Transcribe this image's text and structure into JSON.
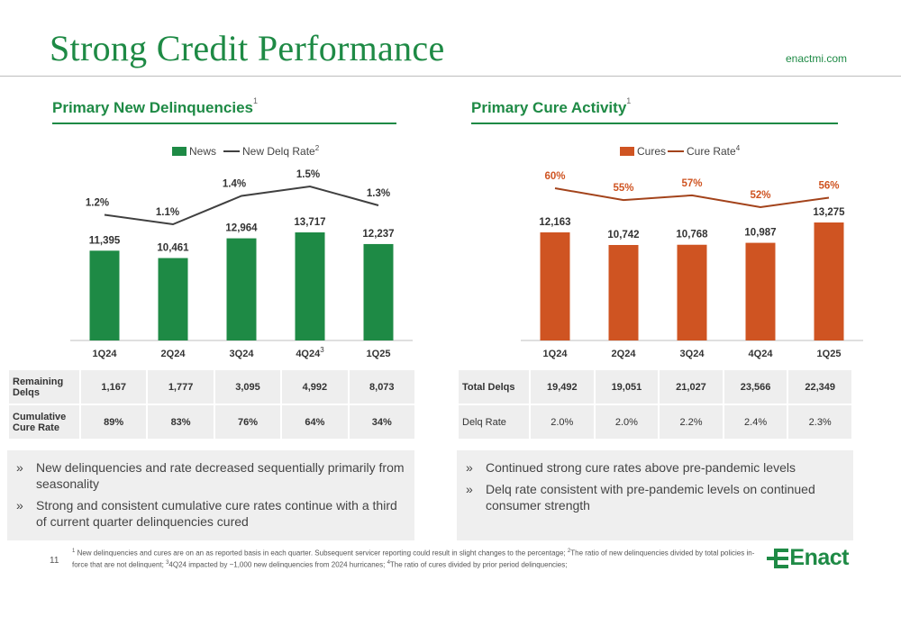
{
  "header": {
    "title": "Strong Credit Performance",
    "site": "enactmi.com"
  },
  "left": {
    "title": "Primary New Delinquencies",
    "title_sup": "1",
    "legend": {
      "bar": "News",
      "line": "New Delq Rate",
      "line_sup": "2"
    },
    "table": {
      "rows": [
        {
          "label": "Remaining Delqs",
          "values": [
            "1,167",
            "1,777",
            "3,095",
            "4,992",
            "8,073"
          ]
        },
        {
          "label": "Cumulative Cure Rate",
          "values": [
            "89%",
            "83%",
            "76%",
            "64%",
            "34%"
          ]
        }
      ]
    },
    "bullets": [
      "New delinquencies and rate decreased sequentially primarily from seasonality",
      "Strong and consistent cumulative cure rates continue with a third of current quarter delinquencies cured"
    ]
  },
  "right": {
    "title": "Primary Cure Activity",
    "title_sup": "1",
    "legend": {
      "bar": "Cures",
      "line": "Cure Rate",
      "line_sup": "4"
    },
    "table": {
      "rows": [
        {
          "label": "Total Delqs",
          "values": [
            "19,492",
            "19,051",
            "21,027",
            "23,566",
            "22,349"
          ]
        },
        {
          "label": "Delq Rate",
          "values": [
            "2.0%",
            "2.0%",
            "2.2%",
            "2.4%",
            "2.3%"
          ]
        }
      ]
    },
    "bullets": [
      "Continued strong cure rates above pre-pandemic levels",
      "Delq rate consistent with pre-pandemic levels on continued consumer strength"
    ]
  },
  "chart_data": [
    {
      "type": "bar",
      "categories": [
        "1Q24",
        "2Q24",
        "3Q24",
        "4Q24",
        "1Q25"
      ],
      "category_sups": [
        "",
        "",
        "",
        "3",
        ""
      ],
      "series": [
        {
          "name": "News",
          "values": [
            11395,
            10461,
            12964,
            13717,
            12237
          ],
          "labels": [
            "11,395",
            "10,461",
            "12,964",
            "13,717",
            "12,237"
          ],
          "color": "#1e8a45"
        },
        {
          "name": "New Delq Rate",
          "type": "line",
          "values": [
            1.2,
            1.1,
            1.4,
            1.5,
            1.3
          ],
          "labels": [
            "1.2%",
            "1.1%",
            "1.4%",
            "1.5%",
            "1.3%"
          ],
          "color": "#404040"
        }
      ],
      "legend": "top-center",
      "grid": false
    },
    {
      "type": "bar",
      "categories": [
        "1Q24",
        "2Q24",
        "3Q24",
        "4Q24",
        "1Q25"
      ],
      "category_sups": [
        "",
        "",
        "",
        "",
        ""
      ],
      "series": [
        {
          "name": "Cures",
          "values": [
            12163,
            10742,
            10768,
            10987,
            13275
          ],
          "labels": [
            "12,163",
            "10,742",
            "10,768",
            "10,987",
            "13,275"
          ],
          "color": "#cf5422"
        },
        {
          "name": "Cure Rate",
          "type": "line",
          "values": [
            60,
            55,
            57,
            52,
            56
          ],
          "labels": [
            "60%",
            "55%",
            "57%",
            "52%",
            "56%"
          ],
          "color": "#a3431b"
        }
      ],
      "legend": "top-center",
      "grid": false
    }
  ],
  "footer": {
    "page": "11",
    "footnote_parts": [
      {
        "sup": "1",
        "text": " New delinquencies and cures are on an as reported basis in each quarter. Subsequent servicer reporting could result in slight changes to the percentage;  "
      },
      {
        "sup": "2",
        "text": "The ratio of new delinquencies divided by total policies in-force that are not delinquent; "
      },
      {
        "sup": "3",
        "text": "4Q24 impacted by ~1,000 new delinquencies from 2024 hurricanes; "
      },
      {
        "sup": "4",
        "text": "The ratio of cures divided by prior period delinquencies;"
      }
    ],
    "logo_text": "Enact",
    "logo_color": "#1e8a45"
  }
}
